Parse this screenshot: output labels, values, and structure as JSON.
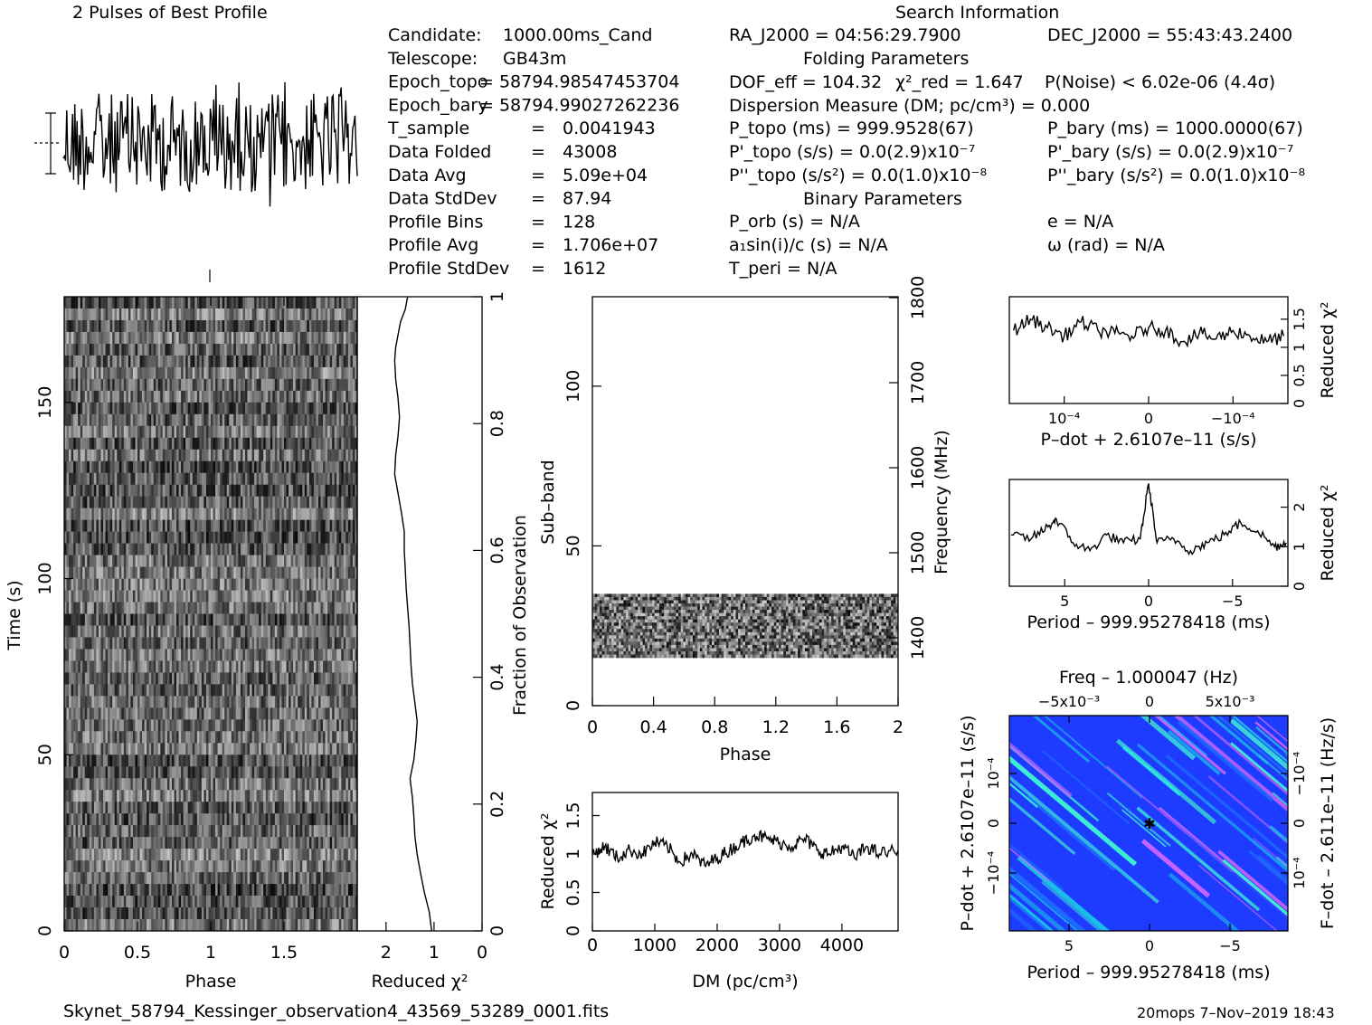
{
  "profile_panel": {
    "title": "2 Pulses of Best Profile"
  },
  "header": {
    "search_title": "Search Information"
  },
  "info_left": [
    {
      "label": "Candidate:",
      "value": "1000.00ms_Cand"
    },
    {
      "label": "Telescope:",
      "value": "GB43m"
    },
    {
      "label": "Epoch_topo",
      "value": "= 58794.98547453704"
    },
    {
      "label": "Epoch_bary",
      "value": "= 58794.99027262236"
    },
    {
      "label": "T_sample",
      "value": "0.0041943"
    },
    {
      "label": "Data Folded",
      "value": "43008"
    },
    {
      "label": "Data Avg",
      "value": "5.09e+04"
    },
    {
      "label": "Data StdDev",
      "value": "87.94"
    },
    {
      "label": "Profile Bins",
      "value": "128"
    },
    {
      "label": "Profile Avg",
      "value": "1.706e+07"
    },
    {
      "label": "Profile StdDev",
      "value": "1612"
    }
  ],
  "info_mid": {
    "ra": "RA_J2000 = 04:56:29.7900",
    "dec": "DEC_J2000 = 55:43:43.2400",
    "folding_title": "Folding Parameters",
    "dof": "DOF_eff = 104.32",
    "chi": "χ²_red = 1.647",
    "pnoise": "P(Noise) < 6.02e-06  (4.4σ)",
    "dm": "Dispersion Measure (DM; pc/cm³) = 0.000",
    "ptopo": "P_topo (ms) =  999.9528(67)",
    "pbary": "P_bary (ms) =  1000.0000(67)",
    "pdtopo": "P'_topo (s/s) = 0.0(2.9)x10⁻⁷",
    "pdbary": "P'_bary (s/s) = 0.0(2.9)x10⁻⁷",
    "pddtopo": "P''_topo (s/s²) = 0.0(1.0)x10⁻⁸",
    "pddbary": "P''_bary (s/s²) = 0.0(1.0)x10⁻⁸",
    "binary_title": "Binary Parameters",
    "porb": "P_orb (s) = N/A",
    "e": "e = N/A",
    "asini": "a₁sin(i)/c (s) = N/A",
    "omega": "ω (rad) = N/A",
    "tperi": "T_peri = N/A"
  },
  "footer": {
    "filename": "Skynet_58794_Kessinger_observation4_43569_53289_0001.fits",
    "stamp": "20mops   7–Nov–2019 18:43"
  },
  "chart_data": [
    {
      "id": "time-phase",
      "type": "heatmap",
      "xlabel": "Phase",
      "ylabel": "Time (s)",
      "xlim": [
        0,
        2
      ],
      "ylim": [
        0,
        180
      ],
      "xticks": [
        "0",
        "0.5",
        "1",
        "1.5"
      ],
      "yticks": [
        "0",
        "50",
        "100",
        "150"
      ],
      "right_label": "Fraction of Observation",
      "right_ticks": [
        "0",
        "0.2",
        "0.4",
        "0.6",
        "0.8",
        "1"
      ]
    },
    {
      "id": "time-chi",
      "type": "line",
      "xlabel": "Reduced χ²",
      "xlim": [
        2.6,
        0
      ],
      "ylim": [
        0,
        1
      ],
      "xticks": [
        "2",
        "1",
        "0"
      ],
      "x": [
        1.05,
        1.1,
        1.2,
        1.28,
        1.35,
        1.4,
        1.42,
        1.45,
        1.5,
        1.42,
        1.38,
        1.35,
        1.4,
        1.45,
        1.48,
        1.5,
        1.52,
        1.55,
        1.58,
        1.6,
        1.62,
        1.62,
        1.68,
        1.75,
        1.82,
        1.8,
        1.75,
        1.72,
        1.75,
        1.8,
        1.82,
        1.8,
        1.75,
        1.7,
        1.65,
        1.6,
        1.55
      ],
      "y": [
        0.0,
        0.03,
        0.06,
        0.09,
        0.12,
        0.15,
        0.18,
        0.21,
        0.24,
        0.27,
        0.3,
        0.33,
        0.36,
        0.39,
        0.42,
        0.45,
        0.48,
        0.51,
        0.54,
        0.57,
        0.6,
        0.63,
        0.66,
        0.69,
        0.72,
        0.75,
        0.78,
        0.81,
        0.84,
        0.87,
        0.9,
        0.92,
        0.94,
        0.96,
        0.97,
        0.98,
        1.0
      ]
    },
    {
      "id": "subband-phase",
      "type": "heatmap",
      "xlabel": "Phase",
      "ylabel": "Sub–band",
      "xlim": [
        0,
        2
      ],
      "ylim": [
        0,
        128
      ],
      "xticks": [
        "0",
        "0.4",
        "0.8",
        "1.2",
        "1.6",
        "2"
      ],
      "yticks": [
        "0",
        "50",
        "100"
      ],
      "right_label": "Frequency (MHz)",
      "right_ticks": [
        "1400",
        "1500",
        "1600",
        "1700",
        "1800"
      ],
      "band_low": 15,
      "band_high": 35
    },
    {
      "id": "dm-chi",
      "type": "line",
      "xlabel": "DM (pc/cm³)",
      "ylabel": "Reduced χ²",
      "xlim": [
        0,
        4900
      ],
      "ylim": [
        0,
        1.8
      ],
      "xticks": [
        "0",
        "1000",
        "2000",
        "3000",
        "4000"
      ],
      "yticks": [
        "0",
        "0.5",
        "1",
        "1.5"
      ],
      "x": [
        0,
        200,
        400,
        600,
        800,
        1000,
        1200,
        1400,
        1600,
        1800,
        2000,
        2200,
        2400,
        2600,
        2800,
        3000,
        3200,
        3400,
        3600,
        3800,
        4000,
        4200,
        4400,
        4600,
        4900
      ],
      "y": [
        1.0,
        1.1,
        0.95,
        1.05,
        1.0,
        1.15,
        1.1,
        0.9,
        1.0,
        0.85,
        0.95,
        1.05,
        1.15,
        1.25,
        1.2,
        1.15,
        1.1,
        1.2,
        1.05,
        1.0,
        1.1,
        0.95,
        1.1,
        1.0,
        1.05
      ]
    },
    {
      "id": "pdot-chi",
      "type": "line",
      "xlabel": "P–dot + 2.6107e–11 (s/s)",
      "ylabel": "Reduced χ²",
      "xlim": [
        1.65,
        -1.65
      ],
      "ylim": [
        0,
        1.9
      ],
      "xticks": [
        "10⁻⁴",
        "0",
        "−10⁻⁴"
      ],
      "yticks": [
        "0",
        "0.5",
        "1",
        "1.5"
      ],
      "x": [
        1.6,
        1.4,
        1.2,
        1.0,
        0.8,
        0.6,
        0.4,
        0.2,
        0.0,
        -0.2,
        -0.4,
        -0.6,
        -0.8,
        -1.0,
        -1.2,
        -1.4,
        -1.6
      ],
      "y": [
        1.3,
        1.5,
        1.35,
        1.2,
        1.45,
        1.3,
        1.25,
        1.2,
        1.35,
        1.3,
        1.1,
        1.25,
        1.15,
        1.3,
        1.2,
        1.1,
        1.2
      ]
    },
    {
      "id": "period-chi",
      "type": "line",
      "xlabel": "Period – 999.95278418 (ms)",
      "ylabel": "Reduced χ²",
      "xlim": [
        8.3,
        -8.3
      ],
      "ylim": [
        0,
        2.7
      ],
      "xticks": [
        "5",
        "0",
        "−5"
      ],
      "yticks": [
        "0",
        "1",
        "2"
      ],
      "x": [
        8.2,
        7.0,
        6.0,
        5.5,
        4.5,
        3.5,
        2.5,
        1.5,
        0.5,
        0.0,
        -0.5,
        -1.5,
        -2.5,
        -3.5,
        -4.5,
        -5.5,
        -6.5,
        -7.5,
        -8.2
      ],
      "y": [
        1.3,
        1.2,
        1.5,
        1.7,
        1.1,
        0.9,
        1.3,
        1.1,
        1.2,
        2.6,
        1.1,
        1.2,
        0.9,
        1.1,
        1.3,
        1.6,
        1.4,
        1.0,
        1.1
      ]
    },
    {
      "id": "p-pdot",
      "type": "heatmap",
      "xlabel": "Period – 999.95278418 (ms)",
      "ylabel": "P–dot + 2.6107e–11 (s/s)",
      "top_label": "Freq – 1.000047 (Hz)",
      "right_label": "F–dot – 2.611e–11 (Hz/s)",
      "xticks": [
        "5",
        "0",
        "−5"
      ],
      "top_ticks": [
        "−5x10⁻³",
        "0",
        "5x10⁻³"
      ],
      "yticks": [
        "10⁻⁴",
        "0",
        "−10⁻⁴"
      ],
      "right_ticks": [
        "−10⁻⁴",
        "0",
        "10⁻⁴"
      ],
      "colors": [
        "#1e3cff",
        "#1e6aff",
        "#19c8e6",
        "#3cf0d2",
        "#c864ff"
      ]
    }
  ]
}
